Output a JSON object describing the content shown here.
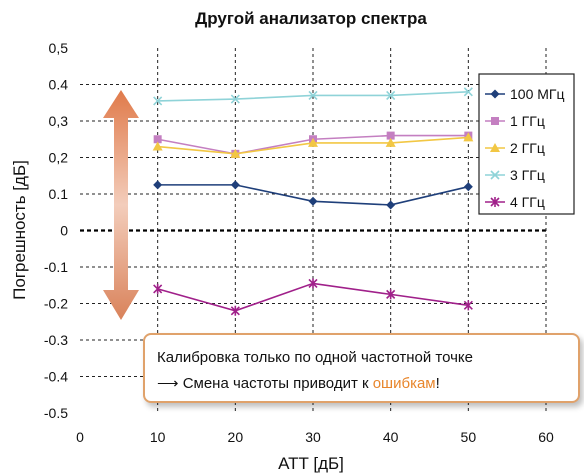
{
  "chart_data": {
    "type": "line",
    "title": "Другой анализатор спектра",
    "xlabel": "ATT [дБ]",
    "ylabel": "Погрешность [дБ]",
    "xlim": [
      0,
      60
    ],
    "ylim": [
      -0.5,
      0.5
    ],
    "x_ticks": [
      "0",
      "10",
      "20",
      "30",
      "40",
      "50",
      "60"
    ],
    "y_ticks": [
      "0,5",
      "0.4",
      "0,3",
      "0,2",
      "0.1",
      "0",
      "-0.1",
      "-0.2",
      "-0.3",
      "-0.4",
      "-0.5"
    ],
    "grid": true,
    "legend_position": "right",
    "x": [
      10,
      20,
      30,
      40,
      50
    ],
    "series": [
      {
        "name": "100 МГц",
        "color": "#1f3f7a",
        "marker": "diamond",
        "values": [
          0.125,
          0.125,
          0.08,
          0.07,
          0.12
        ]
      },
      {
        "name": "1 ГГц",
        "color": "#c47fc1",
        "marker": "square",
        "values": [
          0.25,
          0.21,
          0.25,
          0.26,
          0.26
        ]
      },
      {
        "name": "2 ГГц",
        "color": "#f2c744",
        "marker": "triangle",
        "values": [
          0.23,
          0.21,
          0.24,
          0.24,
          0.255
        ]
      },
      {
        "name": "3 ГГц",
        "color": "#8fd3d8",
        "marker": "x",
        "values": [
          0.355,
          0.36,
          0.37,
          0.37,
          0.38
        ]
      },
      {
        "name": "4 ГГц",
        "color": "#a0208a",
        "marker": "star",
        "values": [
          -0.16,
          -0.22,
          -0.145,
          -0.175,
          -0.205
        ]
      }
    ],
    "annotation": {
      "line1": "Калибровка только по одной частотной точке",
      "line2_arrow": "⟶",
      "line2_prefix": "Смена частоты приводит к",
      "line2_highlight": "ошибкам",
      "line2_suffix": "!"
    }
  },
  "colors": {
    "arrow_top": "#e07a4a",
    "arrow_bottom": "#d9825a",
    "callout_border": "#e0a26b",
    "highlight": "#e8862c"
  }
}
